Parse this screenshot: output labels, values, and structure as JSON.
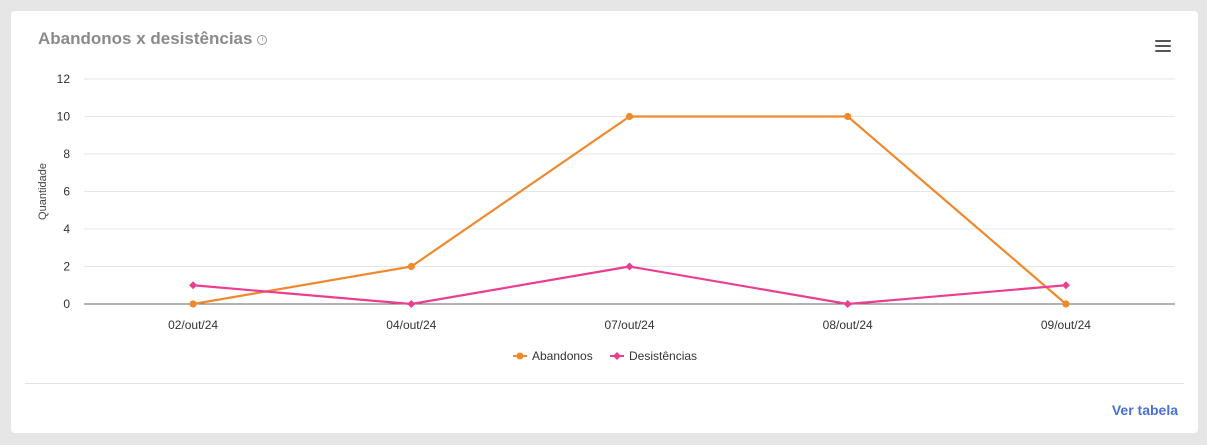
{
  "card": {
    "title": "Abandonos x desistências",
    "info_glyph": "i",
    "menu_icon": "hamburger-menu-icon",
    "table_link": "Ver tabela"
  },
  "chart_data": {
    "type": "line",
    "title": "Abandonos x desistências",
    "ylabel": "Quantidade",
    "xlabel": "",
    "categories": [
      "02/out/24",
      "04/out/24",
      "07/out/24",
      "08/out/24",
      "09/out/24"
    ],
    "ylim": [
      0,
      12
    ],
    "yticks": [
      0,
      2,
      4,
      6,
      8,
      10,
      12
    ],
    "grid": true,
    "legend_position": "bottom-center",
    "series": [
      {
        "name": "Abandonos",
        "color": "#f0892e",
        "marker": "circle",
        "values": [
          0,
          2,
          10,
          10,
          0
        ]
      },
      {
        "name": "Desistências",
        "color": "#ea3f8e",
        "marker": "diamond",
        "values": [
          1,
          0,
          2,
          0,
          1
        ]
      }
    ]
  }
}
